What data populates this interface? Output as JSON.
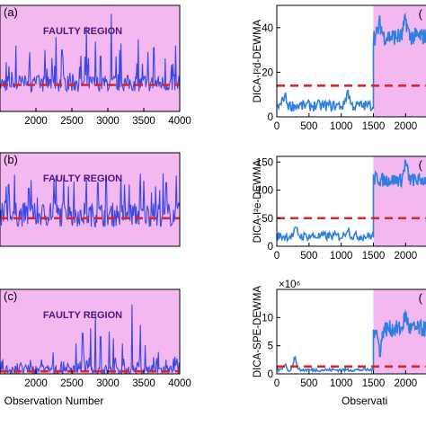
{
  "chart_data": [
    {
      "id": "left-a",
      "type": "line",
      "panel_label": "(a)",
      "region_label": "FAULTY REGION",
      "xlim": [
        1500,
        4000
      ],
      "xticks": [
        2000,
        2500,
        3000,
        3500,
        4000
      ],
      "ylim": [
        0,
        10
      ],
      "yticks": [],
      "threshold": 2.5,
      "highlight": [
        1500,
        4000
      ],
      "spikes": [
        {
          "x": 1720,
          "y": 6.2
        },
        {
          "x": 2280,
          "y": 7.0
        },
        {
          "x": 2360,
          "y": 5.8
        },
        {
          "x": 2700,
          "y": 8.0
        },
        {
          "x": 2830,
          "y": 6.6
        },
        {
          "x": 2900,
          "y": 5.2
        },
        {
          "x": 3050,
          "y": 9.2
        },
        {
          "x": 3180,
          "y": 6.4
        },
        {
          "x": 3420,
          "y": 6.8
        },
        {
          "x": 3560,
          "y": 5.6
        },
        {
          "x": 3640,
          "y": 6.0
        },
        {
          "x": 3800,
          "y": 5.0
        },
        {
          "x": 3940,
          "y": 6.2
        }
      ],
      "noise_base": 2.4,
      "noise_amp": 1.6
    },
    {
      "id": "left-b",
      "type": "line",
      "panel_label": "(b)",
      "region_label": "FAULTY REGION",
      "xlim": [
        1500,
        4000
      ],
      "xticks": [],
      "ylim": [
        0,
        10
      ],
      "yticks": [],
      "threshold": 3.0,
      "highlight": [
        1500,
        4000
      ],
      "spikes": [
        {
          "x": 1620,
          "y": 6.6
        },
        {
          "x": 1900,
          "y": 6.2
        },
        {
          "x": 2250,
          "y": 7.0
        },
        {
          "x": 2450,
          "y": 6.4
        },
        {
          "x": 2700,
          "y": 7.4
        },
        {
          "x": 2860,
          "y": 6.8
        },
        {
          "x": 2980,
          "y": 7.2
        },
        {
          "x": 3180,
          "y": 7.6
        },
        {
          "x": 3300,
          "y": 6.6
        },
        {
          "x": 3500,
          "y": 7.0
        },
        {
          "x": 3660,
          "y": 6.4
        },
        {
          "x": 3820,
          "y": 6.8
        }
      ],
      "noise_base": 3.0,
      "noise_amp": 2.6
    },
    {
      "id": "left-c",
      "type": "line",
      "panel_label": "(c)",
      "region_label": "FAULTY REGION",
      "xlim": [
        1500,
        4000
      ],
      "xticks": [
        2000,
        2500,
        3000,
        3500,
        4000
      ],
      "xlabel": "Observation Number",
      "ylim": [
        0,
        10
      ],
      "yticks": [],
      "threshold": 0.3,
      "highlight": [
        1500,
        4000
      ],
      "spikes": [
        {
          "x": 2560,
          "y": 3.6
        },
        {
          "x": 2650,
          "y": 4.8
        },
        {
          "x": 2760,
          "y": 5.4
        },
        {
          "x": 2830,
          "y": 7.2
        },
        {
          "x": 2900,
          "y": 4.4
        },
        {
          "x": 3020,
          "y": 5.0
        },
        {
          "x": 3080,
          "y": 4.2
        },
        {
          "x": 3200,
          "y": 3.6
        },
        {
          "x": 3340,
          "y": 8.2
        },
        {
          "x": 3450,
          "y": 5.8
        },
        {
          "x": 3520,
          "y": 3.4
        },
        {
          "x": 3700,
          "y": 2.6
        }
      ],
      "noise_base": 0.3,
      "noise_amp": 1.2
    },
    {
      "id": "right-a",
      "type": "line",
      "ylabel": "DICA-I²d-DEWMA",
      "xlim": [
        0,
        2400
      ],
      "xticks": [
        0,
        500,
        1000,
        1500,
        2000
      ],
      "ylim": [
        0,
        50
      ],
      "yticks": [
        0,
        20,
        40
      ],
      "threshold": 14,
      "highlight": [
        1500,
        2400
      ],
      "corner_label": "(",
      "segments": [
        {
          "x0": 0,
          "x1": 1500,
          "base": 5,
          "amp": 2.5,
          "bumps": [
            {
              "x": 120,
              "y": 10
            },
            {
              "x": 1100,
              "y": 12
            }
          ]
        },
        {
          "x0": 1500,
          "x1": 2400,
          "base": 36,
          "amp": 4,
          "bumps": [
            {
              "x": 1600,
              "y": 42
            },
            {
              "x": 2000,
              "y": 44
            }
          ]
        }
      ]
    },
    {
      "id": "right-b",
      "type": "line",
      "ylabel": "DICA-I²e-DEWMA",
      "xlim": [
        0,
        2400
      ],
      "xticks": [
        0,
        500,
        1000,
        1500,
        2000
      ],
      "ylim": [
        0,
        160
      ],
      "yticks": [
        0,
        50,
        100,
        150
      ],
      "threshold": 50,
      "highlight": [
        1500,
        2400
      ],
      "corner_label": "(",
      "segments": [
        {
          "x0": 0,
          "x1": 1500,
          "base": 18,
          "amp": 8,
          "bumps": [
            {
              "x": 300,
              "y": 30
            },
            {
              "x": 1100,
              "y": 34
            }
          ]
        },
        {
          "x0": 1500,
          "x1": 2400,
          "base": 118,
          "amp": 12,
          "bumps": [
            {
              "x": 1550,
              "y": 122
            },
            {
              "x": 2000,
              "y": 150
            }
          ]
        }
      ]
    },
    {
      "id": "right-c",
      "type": "line",
      "ylabel": "DICA-SPE-DEWMA",
      "exponent_label": "×10⁶",
      "xlim": [
        0,
        2400
      ],
      "xticks": [
        0,
        500,
        1000,
        1500,
        2000
      ],
      "xlabel": "Observati",
      "ylim": [
        0,
        15
      ],
      "yticks": [
        0,
        5,
        10
      ],
      "threshold": 1.3,
      "highlight": [
        1500,
        2400
      ],
      "corner_label": "(",
      "segments": [
        {
          "x0": 0,
          "x1": 1500,
          "base": 0.7,
          "amp": 0.3,
          "bumps": [
            {
              "x": 120,
              "y": 1.8
            },
            {
              "x": 280,
              "y": 3.0
            }
          ]
        },
        {
          "x0": 1500,
          "x1": 2400,
          "base": 8,
          "amp": 1.5,
          "bumps": [
            {
              "x": 1600,
              "y": 4
            },
            {
              "x": 2000,
              "y": 10.5
            }
          ]
        }
      ]
    }
  ],
  "colors": {
    "highlight": "#f3b8f0",
    "line": "#3a48e6",
    "line_right": "#2f7fe0",
    "threshold": "#d9262b"
  }
}
